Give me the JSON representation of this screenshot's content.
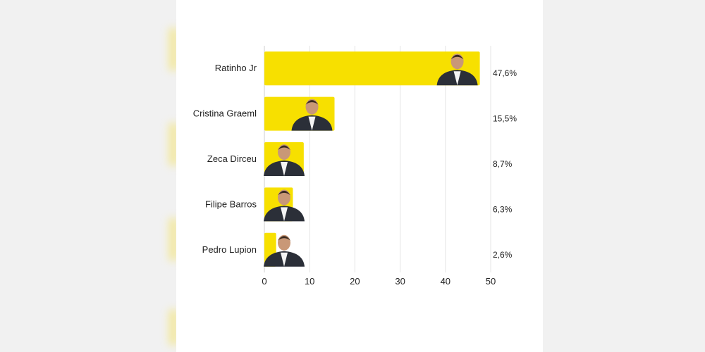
{
  "chart_data": {
    "type": "bar",
    "orientation": "horizontal",
    "categories": [
      "Ratinho Jr",
      "Cristina Graeml",
      "Zeca Dirceu",
      "Filipe Barros",
      "Pedro Lupion"
    ],
    "values": [
      47.6,
      15.5,
      8.7,
      6.3,
      2.6
    ],
    "value_labels": [
      "47,6%",
      "15,5%",
      "8,7%",
      "6,3%",
      "2,6%"
    ],
    "xlim": [
      0,
      50
    ],
    "xticks": [
      0,
      10,
      20,
      30,
      40,
      50
    ],
    "grid": "vertical",
    "bar_color": "#f7e000"
  }
}
